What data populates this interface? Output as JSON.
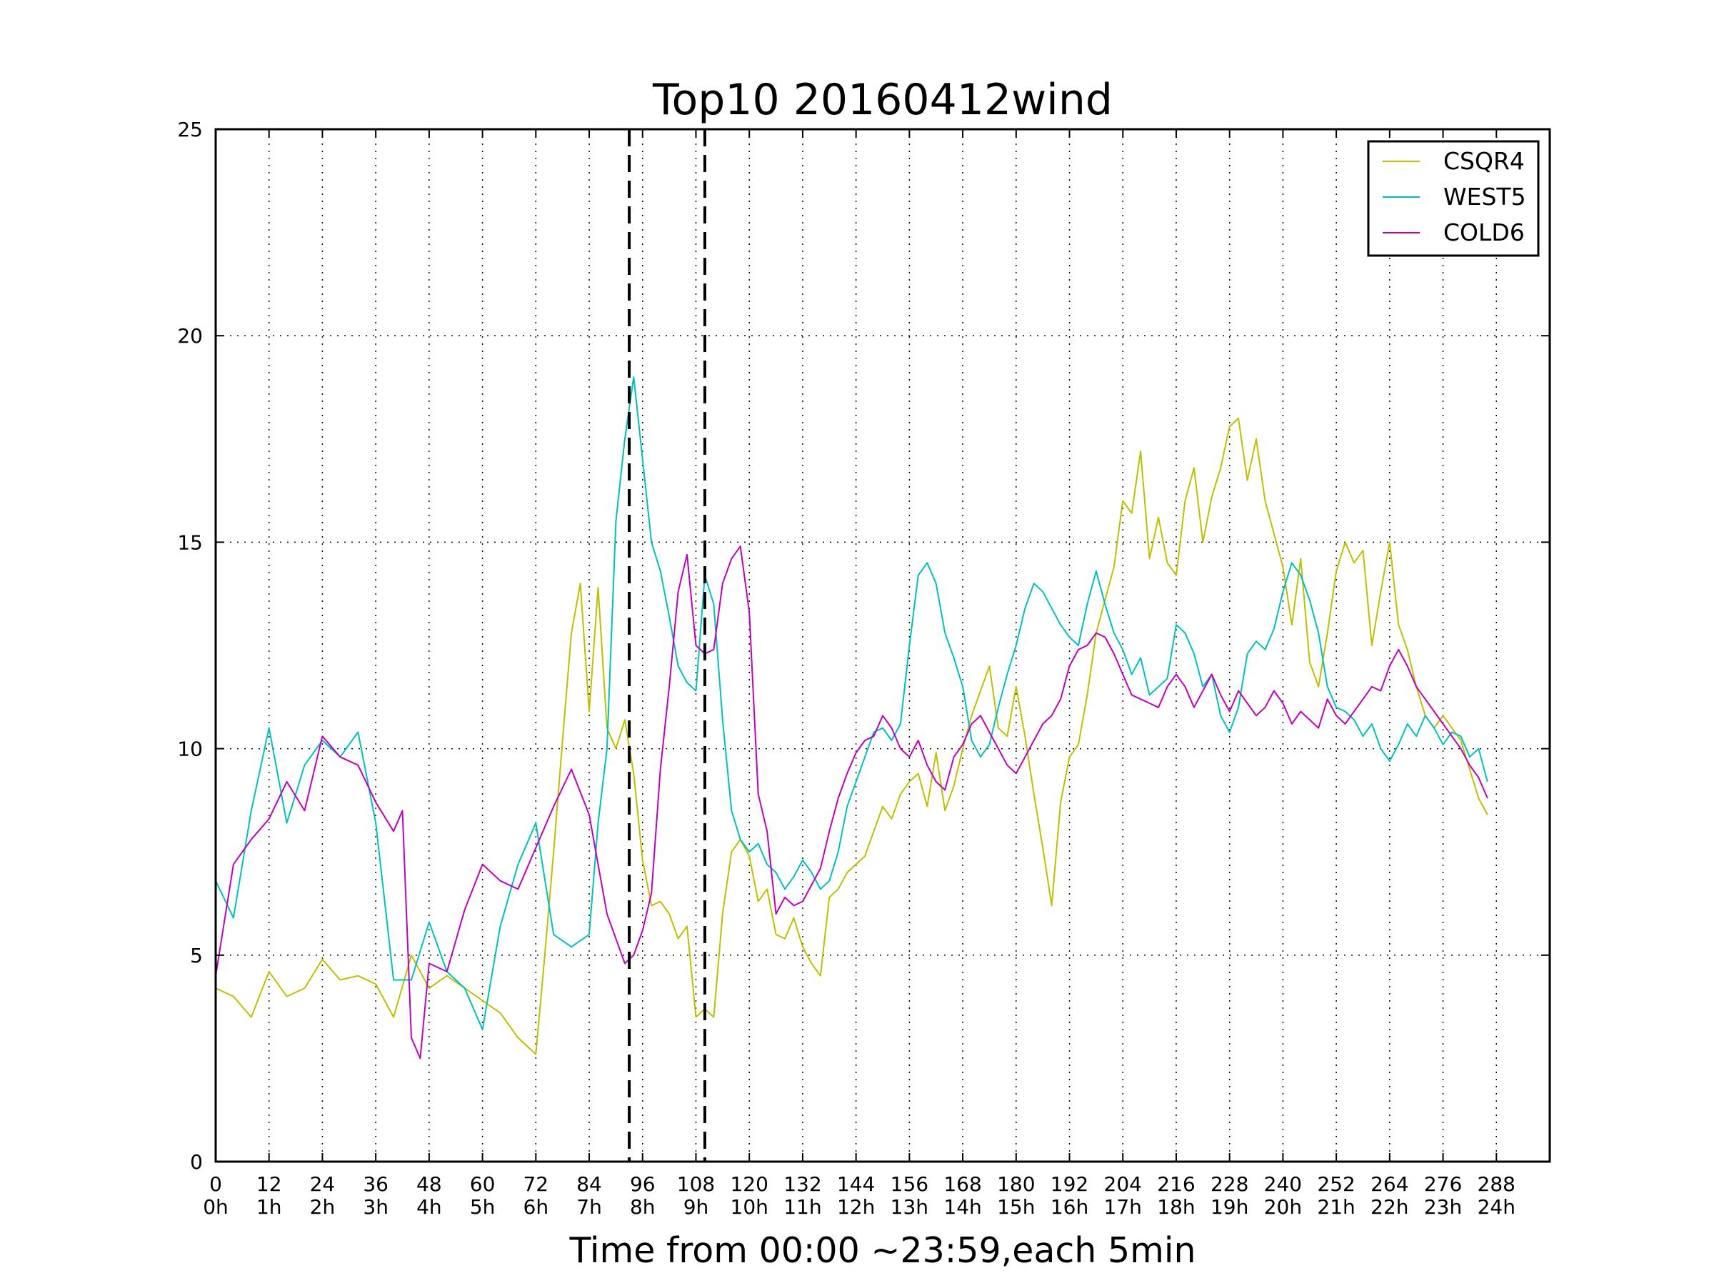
{
  "chart_data": {
    "type": "line",
    "title": "Top10 20160412wind",
    "xlabel": "Time from 00:00 ~23:59,each 5min",
    "ylabel": "",
    "xlim": [
      0,
      300
    ],
    "ylim": [
      0,
      25
    ],
    "grid": true,
    "legend_position": "top-right",
    "x_ticks": [
      {
        "value": 0,
        "label": "0",
        "hour": "0h"
      },
      {
        "value": 12,
        "label": "12",
        "hour": "1h"
      },
      {
        "value": 24,
        "label": "24",
        "hour": "2h"
      },
      {
        "value": 36,
        "label": "36",
        "hour": "3h"
      },
      {
        "value": 48,
        "label": "48",
        "hour": "4h"
      },
      {
        "value": 60,
        "label": "60",
        "hour": "5h"
      },
      {
        "value": 72,
        "label": "72",
        "hour": "6h"
      },
      {
        "value": 84,
        "label": "84",
        "hour": "7h"
      },
      {
        "value": 96,
        "label": "96",
        "hour": "8h"
      },
      {
        "value": 108,
        "label": "108",
        "hour": "9h"
      },
      {
        "value": 120,
        "label": "120",
        "hour": "10h"
      },
      {
        "value": 132,
        "label": "132",
        "hour": "11h"
      },
      {
        "value": 144,
        "label": "144",
        "hour": "12h"
      },
      {
        "value": 156,
        "label": "156",
        "hour": "13h"
      },
      {
        "value": 168,
        "label": "168",
        "hour": "14h"
      },
      {
        "value": 180,
        "label": "180",
        "hour": "15h"
      },
      {
        "value": 192,
        "label": "192",
        "hour": "16h"
      },
      {
        "value": 204,
        "label": "204",
        "hour": "17h"
      },
      {
        "value": 216,
        "label": "216",
        "hour": "18h"
      },
      {
        "value": 228,
        "label": "228",
        "hour": "19h"
      },
      {
        "value": 240,
        "label": "240",
        "hour": "20h"
      },
      {
        "value": 252,
        "label": "252",
        "hour": "21h"
      },
      {
        "value": 264,
        "label": "264",
        "hour": "22h"
      },
      {
        "value": 276,
        "label": "276",
        "hour": "23h"
      },
      {
        "value": 288,
        "label": "288",
        "hour": "24h"
      }
    ],
    "y_ticks": [
      {
        "value": 0,
        "label": "0"
      },
      {
        "value": 5,
        "label": "5"
      },
      {
        "value": 10,
        "label": "10"
      },
      {
        "value": 15,
        "label": "15"
      },
      {
        "value": 20,
        "label": "20"
      },
      {
        "value": 25,
        "label": "25"
      }
    ],
    "vlines": [
      93,
      110
    ],
    "series": [
      {
        "name": "CSQR4",
        "color": "#bfbf00",
        "x": [
          0,
          4,
          8,
          12,
          16,
          20,
          24,
          28,
          32,
          36,
          40,
          44,
          48,
          52,
          56,
          60,
          64,
          68,
          72,
          74,
          76,
          78,
          80,
          82,
          84,
          86,
          88,
          90,
          92,
          94,
          96,
          98,
          100,
          102,
          104,
          106,
          108,
          110,
          112,
          114,
          116,
          118,
          120,
          122,
          124,
          126,
          128,
          130,
          132,
          134,
          136,
          138,
          140,
          142,
          144,
          146,
          148,
          150,
          152,
          154,
          156,
          158,
          160,
          162,
          164,
          166,
          168,
          170,
          172,
          174,
          176,
          178,
          180,
          182,
          184,
          186,
          188,
          190,
          192,
          194,
          196,
          198,
          200,
          202,
          204,
          206,
          208,
          210,
          212,
          214,
          216,
          218,
          220,
          222,
          224,
          226,
          228,
          230,
          232,
          234,
          236,
          238,
          240,
          242,
          244,
          246,
          248,
          250,
          252,
          254,
          256,
          258,
          260,
          262,
          264,
          266,
          268,
          270,
          272,
          274,
          276,
          278,
          280,
          282,
          284,
          286
        ],
        "values": [
          4.2,
          4.0,
          3.5,
          4.6,
          4.0,
          4.2,
          4.9,
          4.4,
          4.5,
          4.3,
          3.5,
          5.0,
          4.2,
          4.5,
          4.2,
          3.9,
          3.6,
          3.0,
          2.6,
          5.0,
          7.5,
          10.2,
          12.8,
          14.0,
          10.9,
          13.9,
          10.5,
          10.0,
          10.7,
          9.4,
          7.3,
          6.2,
          6.3,
          6.0,
          5.4,
          5.7,
          3.5,
          3.7,
          3.5,
          6.0,
          7.5,
          7.8,
          7.4,
          6.3,
          6.6,
          5.5,
          5.4,
          5.9,
          5.2,
          4.8,
          4.5,
          6.4,
          6.6,
          7.0,
          7.2,
          7.4,
          8.0,
          8.6,
          8.3,
          8.9,
          9.2,
          9.4,
          8.6,
          9.9,
          8.5,
          9.1,
          10.0,
          10.8,
          11.4,
          12.0,
          10.5,
          10.3,
          11.5,
          10.3,
          8.9,
          7.6,
          6.2,
          8.7,
          9.8,
          10.1,
          11.3,
          12.8,
          13.6,
          14.4,
          16.0,
          15.7,
          17.2,
          14.6,
          15.6,
          14.5,
          14.2,
          16.0,
          16.8,
          15.0,
          16.1,
          16.8,
          17.8,
          18.0,
          16.5,
          17.5,
          16.0,
          15.2,
          14.4,
          13.0,
          14.6,
          12.1,
          11.5,
          12.8,
          14.3,
          15.0,
          14.5,
          14.8,
          12.5,
          13.8,
          15.0,
          13.0,
          12.4,
          11.5,
          10.8,
          10.5,
          10.8,
          10.5,
          10.2,
          9.5,
          8.8,
          8.4
        ]
      },
      {
        "name": "WEST5",
        "color": "#00bfbf",
        "x": [
          0,
          4,
          8,
          12,
          16,
          20,
          24,
          28,
          32,
          36,
          40,
          44,
          48,
          52,
          56,
          60,
          64,
          68,
          72,
          76,
          80,
          84,
          86,
          88,
          90,
          92,
          94,
          96,
          98,
          100,
          102,
          104,
          106,
          108,
          110,
          112,
          114,
          116,
          118,
          120,
          122,
          124,
          126,
          128,
          130,
          132,
          134,
          136,
          138,
          140,
          142,
          144,
          146,
          148,
          150,
          152,
          154,
          156,
          158,
          160,
          162,
          164,
          166,
          168,
          170,
          172,
          174,
          176,
          178,
          180,
          182,
          184,
          186,
          188,
          190,
          192,
          194,
          196,
          198,
          200,
          202,
          204,
          206,
          208,
          210,
          212,
          214,
          216,
          218,
          220,
          222,
          224,
          226,
          228,
          230,
          232,
          234,
          236,
          238,
          240,
          242,
          244,
          246,
          248,
          250,
          252,
          254,
          256,
          258,
          260,
          262,
          264,
          266,
          268,
          270,
          272,
          274,
          276,
          278,
          280,
          282,
          284,
          286
        ],
        "values": [
          6.8,
          5.9,
          8.5,
          10.5,
          8.2,
          9.6,
          10.2,
          9.8,
          10.4,
          8.2,
          4.4,
          4.4,
          5.8,
          4.6,
          4.2,
          3.2,
          5.7,
          7.2,
          8.2,
          5.5,
          5.2,
          5.5,
          8.2,
          10.0,
          15.5,
          17.5,
          19.0,
          17.0,
          15.0,
          14.3,
          13.2,
          12.0,
          11.6,
          11.4,
          14.2,
          13.5,
          10.7,
          8.5,
          7.8,
          7.5,
          7.7,
          7.2,
          7.0,
          6.6,
          6.9,
          7.3,
          7.0,
          6.6,
          6.8,
          7.5,
          8.6,
          9.2,
          9.8,
          10.4,
          10.5,
          10.2,
          10.6,
          12.5,
          14.2,
          14.5,
          14.0,
          12.8,
          12.2,
          11.5,
          10.2,
          9.8,
          10.1,
          11.0,
          11.8,
          12.5,
          13.4,
          14.0,
          13.8,
          13.4,
          13.0,
          12.7,
          12.5,
          13.5,
          14.3,
          13.5,
          12.8,
          12.4,
          11.8,
          12.2,
          11.3,
          11.5,
          11.7,
          13.0,
          12.8,
          12.3,
          11.5,
          11.8,
          10.8,
          10.4,
          11.0,
          12.3,
          12.6,
          12.4,
          12.9,
          13.8,
          14.5,
          14.2,
          13.6,
          12.8,
          11.5,
          11.0,
          10.9,
          10.7,
          10.3,
          10.6,
          10.0,
          9.7,
          10.1,
          10.6,
          10.3,
          10.8,
          10.5,
          10.1,
          10.4,
          10.3,
          9.8,
          10.0,
          9.2
        ]
      },
      {
        "name": "COLD6",
        "color": "#bf00bf",
        "x": [
          0,
          4,
          8,
          12,
          16,
          20,
          24,
          28,
          32,
          36,
          40,
          42,
          44,
          46,
          48,
          52,
          56,
          60,
          64,
          68,
          72,
          76,
          80,
          84,
          88,
          90,
          92,
          94,
          96,
          98,
          100,
          102,
          104,
          106,
          108,
          110,
          112,
          114,
          116,
          118,
          120,
          122,
          124,
          126,
          128,
          130,
          132,
          134,
          136,
          138,
          140,
          142,
          144,
          146,
          148,
          150,
          152,
          154,
          156,
          158,
          160,
          162,
          164,
          166,
          168,
          170,
          172,
          174,
          176,
          178,
          180,
          182,
          184,
          186,
          188,
          190,
          192,
          194,
          196,
          198,
          200,
          202,
          204,
          206,
          208,
          210,
          212,
          214,
          216,
          218,
          220,
          222,
          224,
          226,
          228,
          230,
          232,
          234,
          236,
          238,
          240,
          242,
          244,
          246,
          248,
          250,
          252,
          254,
          256,
          258,
          260,
          262,
          264,
          266,
          268,
          270,
          272,
          274,
          276,
          278,
          280,
          282,
          284,
          286
        ],
        "values": [
          4.5,
          7.2,
          7.8,
          8.3,
          9.2,
          8.5,
          10.3,
          9.8,
          9.6,
          8.7,
          8.0,
          8.5,
          3.0,
          2.5,
          4.8,
          4.6,
          6.1,
          7.2,
          6.8,
          6.6,
          7.6,
          8.6,
          9.5,
          8.4,
          6.0,
          5.4,
          4.8,
          5.0,
          5.6,
          6.5,
          9.5,
          11.5,
          13.8,
          14.7,
          12.5,
          12.3,
          12.4,
          14.0,
          14.6,
          14.9,
          13.3,
          8.9,
          8.0,
          6.0,
          6.4,
          6.2,
          6.3,
          6.7,
          7.1,
          8.0,
          8.8,
          9.4,
          9.9,
          10.2,
          10.3,
          10.8,
          10.5,
          10.0,
          9.8,
          10.2,
          9.6,
          9.2,
          9.0,
          9.8,
          10.1,
          10.6,
          10.8,
          10.4,
          10.0,
          9.6,
          9.4,
          9.8,
          10.2,
          10.6,
          10.8,
          11.2,
          12.0,
          12.4,
          12.5,
          12.8,
          12.7,
          12.3,
          11.8,
          11.3,
          11.2,
          11.1,
          11.0,
          11.5,
          11.8,
          11.5,
          11.0,
          11.4,
          11.8,
          11.3,
          10.9,
          11.4,
          11.1,
          10.8,
          11.0,
          11.4,
          11.1,
          10.6,
          10.9,
          10.7,
          10.5,
          11.2,
          10.8,
          10.6,
          10.9,
          11.2,
          11.5,
          11.4,
          12.0,
          12.4,
          12.0,
          11.5,
          11.2,
          10.9,
          10.6,
          10.3,
          10.0,
          9.6,
          9.3,
          8.8
        ]
      }
    ]
  }
}
